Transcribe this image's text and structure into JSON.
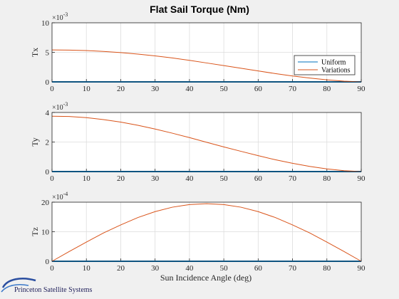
{
  "figure": {
    "title": "Flat Sail Torque (Nm)",
    "xlabel": "Sun Incidence Angle (deg)",
    "logo_text": "Princeton Satellite Systems"
  },
  "colors": {
    "uniform": "#0072bd",
    "variations": "#d95319",
    "grid": "#dcdcdc",
    "axis": "#262626",
    "background": "#f0f0f0",
    "plot_background": "#ffffff"
  },
  "chart_data": [
    {
      "type": "line",
      "ylabel": "Tx",
      "exponent_text": "×10",
      "exponent_power": "-3",
      "xlim": [
        0,
        90
      ],
      "ylim": [
        0,
        10
      ],
      "xticks": [
        "0",
        "10",
        "20",
        "30",
        "40",
        "50",
        "60",
        "70",
        "80",
        "90"
      ],
      "yticks": [
        "0",
        "5",
        "10"
      ],
      "grid": true,
      "legend": {
        "placement": "right",
        "entries": [
          "Uniform",
          "Variations"
        ]
      },
      "x": [
        0,
        5,
        10,
        15,
        20,
        25,
        30,
        35,
        40,
        45,
        50,
        55,
        60,
        65,
        70,
        75,
        80,
        85,
        90
      ],
      "series": [
        {
          "name": "Uniform",
          "color": "#0072bd",
          "values": [
            0,
            0,
            0,
            0,
            0,
            0,
            0,
            0,
            0,
            0,
            0,
            0,
            0,
            0,
            0,
            0,
            0,
            0,
            0
          ]
        },
        {
          "name": "Variations",
          "color": "#d95319",
          "values": [
            5.4,
            5.38,
            5.3,
            5.15,
            4.95,
            4.7,
            4.4,
            4.05,
            3.65,
            3.2,
            2.75,
            2.3,
            1.85,
            1.4,
            1.0,
            0.65,
            0.35,
            0.12,
            0
          ]
        }
      ]
    },
    {
      "type": "line",
      "ylabel": "Ty",
      "exponent_text": "×10",
      "exponent_power": "-3",
      "xlim": [
        0,
        90
      ],
      "ylim": [
        0,
        4
      ],
      "xticks": [
        "0",
        "10",
        "20",
        "30",
        "40",
        "50",
        "60",
        "70",
        "80",
        "90"
      ],
      "yticks": [
        "0",
        "2",
        "4"
      ],
      "grid": true,
      "x": [
        0,
        5,
        10,
        15,
        20,
        25,
        30,
        35,
        40,
        45,
        50,
        55,
        60,
        65,
        70,
        75,
        80,
        85,
        90
      ],
      "series": [
        {
          "name": "Uniform",
          "color": "#0072bd",
          "values": [
            0,
            0,
            0,
            0,
            0,
            0,
            0,
            0,
            0,
            0,
            0,
            0,
            0,
            0,
            0,
            0,
            0,
            0,
            0
          ]
        },
        {
          "name": "Variations",
          "color": "#d95319",
          "values": [
            3.75,
            3.73,
            3.65,
            3.52,
            3.35,
            3.13,
            2.88,
            2.6,
            2.3,
            1.98,
            1.67,
            1.37,
            1.08,
            0.8,
            0.56,
            0.35,
            0.18,
            0.06,
            0
          ]
        }
      ]
    },
    {
      "type": "line",
      "ylabel": "Tz",
      "exponent_text": "×10",
      "exponent_power": "-4",
      "xlim": [
        0,
        90
      ],
      "ylim": [
        0,
        20
      ],
      "xticks": [
        "0",
        "10",
        "20",
        "30",
        "40",
        "50",
        "60",
        "70",
        "80",
        "90"
      ],
      "yticks": [
        "0",
        "10",
        "20"
      ],
      "grid": true,
      "x": [
        0,
        5,
        10,
        15,
        20,
        25,
        30,
        35,
        40,
        45,
        50,
        55,
        60,
        65,
        70,
        75,
        80,
        85,
        90
      ],
      "series": [
        {
          "name": "Uniform",
          "color": "#0072bd",
          "values": [
            0,
            0,
            0,
            0,
            0,
            0,
            0,
            0,
            0,
            0,
            0,
            0,
            0,
            0,
            0,
            0,
            0,
            0,
            0
          ]
        },
        {
          "name": "Variations",
          "color": "#d95319",
          "values": [
            0,
            3.3,
            6.5,
            9.6,
            12.3,
            14.8,
            16.8,
            18.3,
            19.2,
            19.5,
            19.2,
            18.3,
            16.8,
            14.8,
            12.3,
            9.6,
            6.5,
            3.3,
            0
          ]
        }
      ]
    }
  ]
}
